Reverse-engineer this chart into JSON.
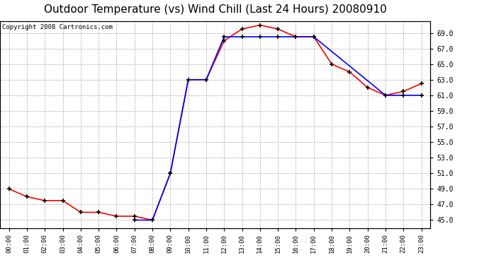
{
  "title": "Outdoor Temperature (vs) Wind Chill (Last 24 Hours) 20080910",
  "copyright_text": "Copyright 2008 Cartronics.com",
  "hours": [
    "00:00",
    "01:00",
    "02:00",
    "03:00",
    "04:00",
    "05:00",
    "06:00",
    "07:00",
    "08:00",
    "09:00",
    "10:00",
    "11:00",
    "12:00",
    "13:00",
    "14:00",
    "15:00",
    "16:00",
    "17:00",
    "18:00",
    "19:00",
    "20:00",
    "21:00",
    "22:00",
    "23:00"
  ],
  "temp": [
    49.0,
    48.0,
    47.5,
    47.5,
    46.0,
    46.0,
    45.5,
    45.5,
    45.0,
    51.0,
    63.0,
    63.0,
    68.0,
    69.5,
    70.0,
    69.5,
    68.5,
    68.5,
    65.0,
    64.0,
    62.0,
    61.0,
    61.5,
    62.5
  ],
  "windchill": [
    null,
    null,
    null,
    null,
    null,
    null,
    null,
    45.0,
    45.0,
    51.0,
    63.0,
    63.0,
    68.5,
    68.5,
    68.5,
    68.5,
    68.5,
    68.5,
    null,
    null,
    null,
    61.0,
    61.0,
    61.0
  ],
  "temp_color": "#ff0000",
  "windchill_color": "#0000ff",
  "bg_color": "#ffffff",
  "plot_bg_color": "#ffffff",
  "grid_color": "#aaaaaa",
  "ylim": [
    44.0,
    70.5
  ],
  "yticks": [
    45.0,
    47.0,
    49.0,
    51.0,
    53.0,
    55.0,
    57.0,
    59.0,
    61.0,
    63.0,
    65.0,
    67.0,
    69.0
  ],
  "title_fontsize": 11,
  "copyright_fontsize": 6.5
}
